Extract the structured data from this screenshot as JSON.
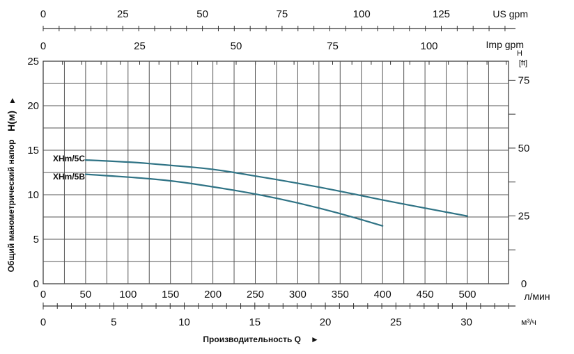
{
  "chart_data": {
    "type": "line",
    "title": "",
    "ylabel": "Общий манометрический напор",
    "ylabel_symbol": "H(м)",
    "ylabel_arrow": "▲",
    "xlabel": "Производительность Q",
    "xlabel_arrow": "►",
    "x_unit": "л/мин",
    "ylim": [
      0,
      25
    ],
    "xlim": [
      0,
      550
    ],
    "grid": true,
    "line_color": "#2f7385",
    "x_ticks": [
      "0",
      "50",
      "100",
      "150",
      "200",
      "250",
      "300",
      "350",
      "400",
      "450",
      "500"
    ],
    "y_ticks": [
      "0",
      "5",
      "10",
      "15",
      "20",
      "25"
    ],
    "series": [
      {
        "name": "XHm/5C",
        "x": [
          50,
          100,
          150,
          200,
          250,
          300,
          350,
          400,
          450,
          500
        ],
        "y": [
          13.9,
          13.7,
          13.3,
          12.9,
          12.1,
          11.3,
          10.4,
          9.4,
          8.5,
          7.6
        ]
      },
      {
        "name": "XHm/5B",
        "x": [
          50,
          100,
          150,
          200,
          250,
          300,
          350,
          400
        ],
        "y": [
          12.3,
          12.0,
          11.6,
          10.9,
          10.1,
          9.1,
          7.9,
          6.5
        ]
      }
    ],
    "secondary_axes": {
      "us_gpm": {
        "unit": "US gpm",
        "ticks": [
          "0",
          "25",
          "50",
          "75",
          "100",
          "125"
        ]
      },
      "imp_gpm": {
        "unit": "Imp gpm",
        "ticks": [
          "0",
          "25",
          "50",
          "75",
          "100"
        ]
      },
      "m3h": {
        "unit": "м³/ч",
        "ticks": [
          "0",
          "5",
          "10",
          "15",
          "20",
          "25",
          "30"
        ]
      },
      "head_ft": {
        "unit_top": "H",
        "unit_bottom": "[ft]",
        "ticks": [
          "0",
          "25",
          "50",
          "75"
        ]
      }
    }
  }
}
